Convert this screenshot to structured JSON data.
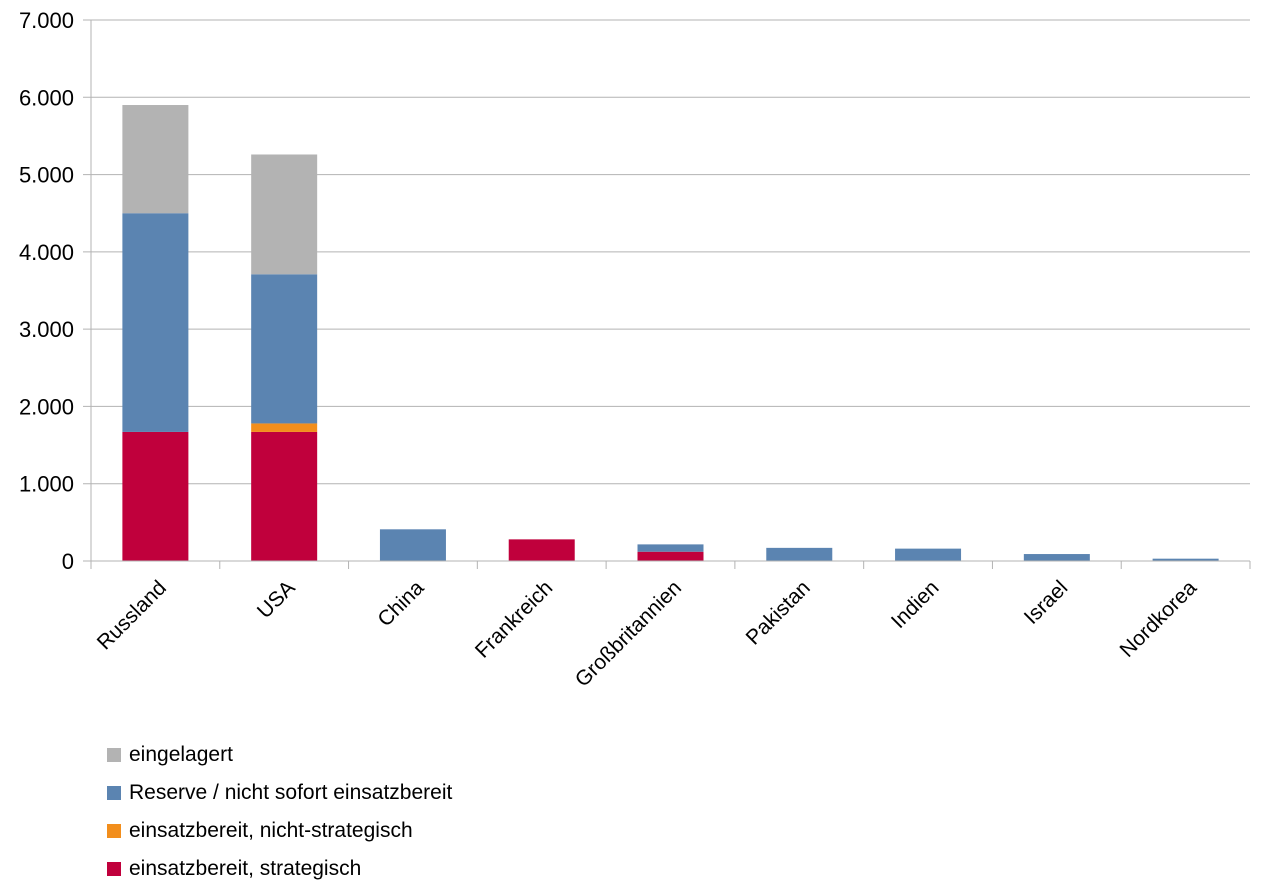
{
  "chart_data": {
    "type": "bar",
    "stacked": true,
    "categories": [
      "Russland",
      "USA",
      "China",
      "Frankreich",
      "Großbritannien",
      "Pakistan",
      "Indien",
      "Israel",
      "Nordkorea"
    ],
    "series": [
      {
        "name": "einsatzbereit, strategisch",
        "color": "#c0003c",
        "values": [
          1670,
          1670,
          0,
          280,
          120,
          0,
          0,
          0,
          0
        ]
      },
      {
        "name": "einsatzbereit, nicht-strategisch",
        "color": "#f28e1c",
        "values": [
          0,
          110,
          0,
          0,
          0,
          0,
          0,
          0,
          0
        ]
      },
      {
        "name": "Reserve / nicht sofort einsatzbereit",
        "color": "#5b84b1",
        "values": [
          2830,
          1930,
          410,
          0,
          95,
          170,
          160,
          90,
          30
        ]
      },
      {
        "name": "eingelagert",
        "color": "#b3b3b3",
        "values": [
          1400,
          1550,
          0,
          0,
          0,
          0,
          0,
          0,
          0
        ]
      }
    ],
    "ylim": [
      0,
      7000
    ],
    "yticks": [
      "0",
      "1.000",
      "2.000",
      "3.000",
      "4.000",
      "5.000",
      "6.000",
      "7.000"
    ],
    "grid": true,
    "legend_position": "bottom-left",
    "title": "",
    "xlabel": "",
    "ylabel": ""
  },
  "legend_order": [
    "eingelagert",
    "Reserve / nicht sofort einsatzbereit",
    "einsatzbereit, nicht-strategisch",
    "einsatzbereit, strategisch"
  ]
}
